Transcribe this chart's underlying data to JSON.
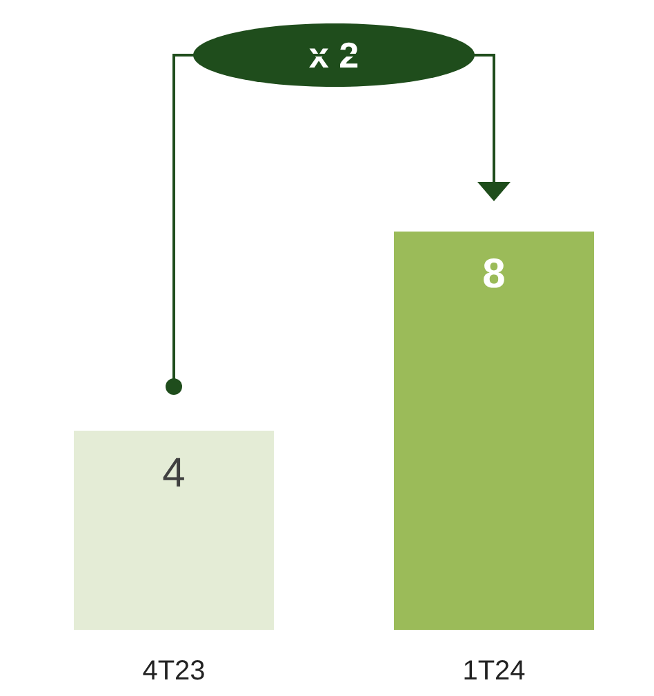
{
  "chart_data": {
    "type": "bar",
    "categories": [
      "4T23",
      "1T24"
    ],
    "values": [
      4,
      8
    ],
    "colors": [
      "#e4ecd6",
      "#9bbb59"
    ],
    "data_labels": true,
    "annotations": [
      "x 2"
    ]
  }
}
